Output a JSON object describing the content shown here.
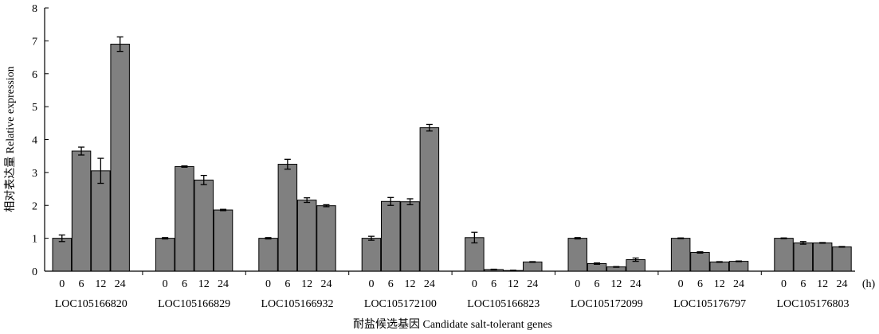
{
  "chart_data": {
    "type": "bar",
    "xlabel": "耐盐候选基因 Candidate salt-tolerant genes",
    "ylabel": "相对表达量 Relative expression",
    "ylim": [
      0,
      8
    ],
    "yticks": [
      0,
      1,
      2,
      3,
      4,
      5,
      6,
      7,
      8
    ],
    "time_points": [
      "0",
      "6",
      "12",
      "24"
    ],
    "time_unit": "(h)",
    "bar_color": "#808080",
    "grid": false,
    "groups": [
      {
        "name": "LOC105166820",
        "values": [
          1.0,
          3.65,
          3.05,
          6.9
        ],
        "errors": [
          0.1,
          0.12,
          0.38,
          0.22
        ]
      },
      {
        "name": "LOC105166829",
        "values": [
          1.0,
          3.18,
          2.77,
          1.86
        ],
        "errors": [
          0.02,
          0.02,
          0.14,
          0.02
        ]
      },
      {
        "name": "LOC105166932",
        "values": [
          1.0,
          3.25,
          2.16,
          1.99
        ],
        "errors": [
          0.02,
          0.15,
          0.07,
          0.03
        ]
      },
      {
        "name": "LOC105172100",
        "values": [
          1.0,
          2.12,
          2.11,
          4.36
        ],
        "errors": [
          0.06,
          0.12,
          0.09,
          0.1
        ]
      },
      {
        "name": "LOC105166823",
        "values": [
          1.02,
          0.05,
          0.02,
          0.28
        ],
        "errors": [
          0.16,
          0.01,
          0.01,
          0.01
        ]
      },
      {
        "name": "LOC105172099",
        "values": [
          1.0,
          0.23,
          0.13,
          0.35
        ],
        "errors": [
          0.02,
          0.02,
          0.01,
          0.05
        ]
      },
      {
        "name": "LOC105176797",
        "values": [
          1.0,
          0.57,
          0.28,
          0.3
        ],
        "errors": [
          0.01,
          0.02,
          0.01,
          0.01
        ]
      },
      {
        "name": "LOC105176803",
        "values": [
          1.0,
          0.86,
          0.86,
          0.74
        ],
        "errors": [
          0.01,
          0.04,
          0.01,
          0.01
        ]
      }
    ]
  }
}
